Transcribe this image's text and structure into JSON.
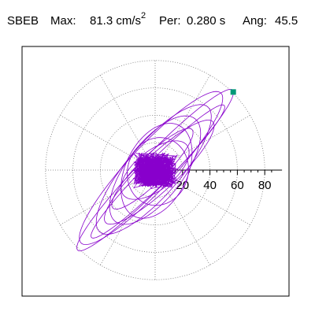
{
  "header": {
    "station": "SBEB",
    "max_label": "Max:",
    "max_value": "81.3 cm/s",
    "max_exponent": "2",
    "per_label": "Per:",
    "per_value": "0.280 s",
    "ang_label": "Ang:",
    "ang_value": "45.5"
  },
  "chart_data": {
    "type": "scatter",
    "description_units": "cm/s^2",
    "r_ticks": [
      20,
      40,
      60,
      80
    ],
    "r_tick_labels": [
      "20",
      "40",
      "60",
      "80"
    ],
    "r_max": 88,
    "grid": true,
    "grid_style": "dotted polar rings every 20 and radial spokes every 30 degrees",
    "angular_spokes_deg": [
      0,
      30,
      60,
      90,
      120,
      150,
      180,
      210,
      240,
      270,
      300,
      330
    ],
    "max_point": {
      "x": 57,
      "y": 57,
      "color": "#009977"
    },
    "trace_color": "#8800cc",
    "principal_angle_deg": 45.5,
    "peak_amplitude": 81.3
  },
  "colors": {
    "trace": "#8800cc",
    "max_marker": "#009977",
    "grid": "#777777",
    "frame": "#000000"
  }
}
